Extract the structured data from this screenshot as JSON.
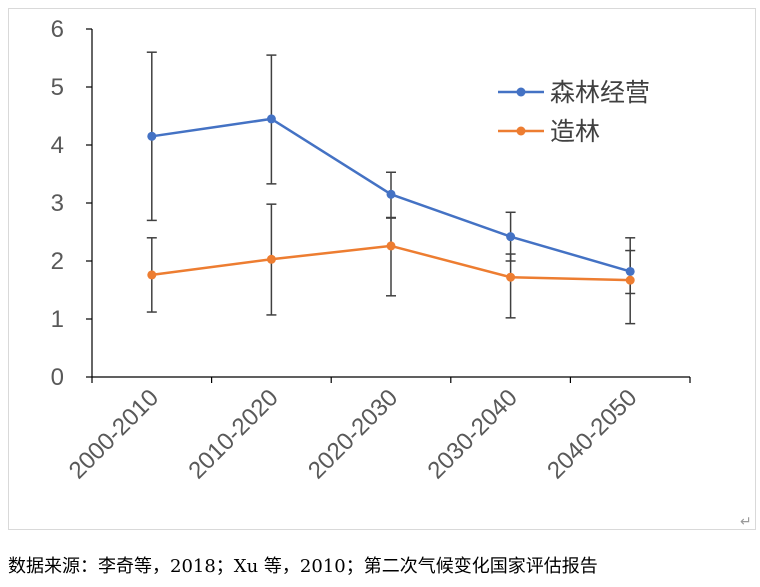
{
  "chart_data": {
    "type": "line",
    "title": "",
    "xlabel": "",
    "ylabel": "",
    "categories": [
      "2000-2010",
      "2010-2020",
      "2020-2030",
      "2030-2040",
      "2040-2050"
    ],
    "ylim": [
      0,
      6
    ],
    "yticks": [
      "0",
      "1",
      "2",
      "3",
      "4",
      "5",
      "6"
    ],
    "grid": false,
    "legend_position": "top-right",
    "series": [
      {
        "name": "森林经营",
        "color": "#4472c4",
        "values": [
          4.15,
          4.45,
          3.15,
          2.42,
          1.82
        ],
        "error_low": [
          2.7,
          3.33,
          2.75,
          2.0,
          1.44
        ],
        "error_high": [
          5.6,
          5.55,
          3.53,
          2.84,
          2.4
        ]
      },
      {
        "name": "造林",
        "color": "#ed7d31",
        "values": [
          1.76,
          2.03,
          2.26,
          1.72,
          1.67
        ],
        "error_low": [
          1.12,
          1.07,
          1.4,
          1.02,
          0.92
        ],
        "error_high": [
          2.4,
          2.98,
          2.74,
          2.12,
          2.18
        ]
      }
    ]
  },
  "caption": "数据来源：李奇等，2018；Xu 等，2010；第二次气候变化国家评估报告",
  "return_mark": "↵"
}
